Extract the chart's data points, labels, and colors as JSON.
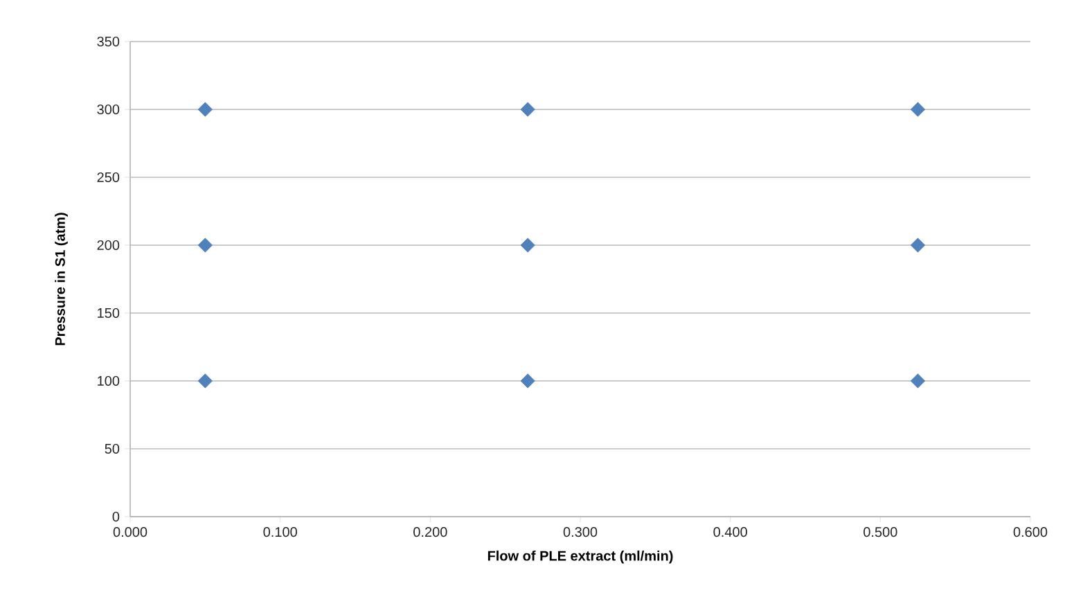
{
  "chart_data": {
    "type": "scatter",
    "xlabel": "Flow of PLE extract (ml/min)",
    "ylabel": "Pressure in S1 (atm)",
    "series": [
      {
        "color": "#4f81bd",
        "x": [
          0.05,
          0.05,
          0.05,
          0.265,
          0.265,
          0.265,
          0.525,
          0.525,
          0.525
        ],
        "values": [
          100,
          200,
          300,
          100,
          200,
          300,
          100,
          200,
          300
        ]
      }
    ],
    "xlim": [
      0,
      0.6
    ],
    "xticks": [
      {
        "value": 0,
        "label": "0.000"
      },
      {
        "value": 0.1,
        "label": "0.100"
      },
      {
        "value": 0.2,
        "label": "0.200"
      },
      {
        "value": 0.3,
        "label": "0.300"
      },
      {
        "value": 0.4,
        "label": "0.400"
      },
      {
        "value": 0.5,
        "label": "0.500"
      },
      {
        "value": 0.6,
        "label": "0.600"
      }
    ],
    "ylim": [
      0,
      350
    ],
    "yticks": [
      0,
      50,
      100,
      150,
      200,
      250,
      300,
      350
    ],
    "grid": "y",
    "marker": "diamond"
  }
}
